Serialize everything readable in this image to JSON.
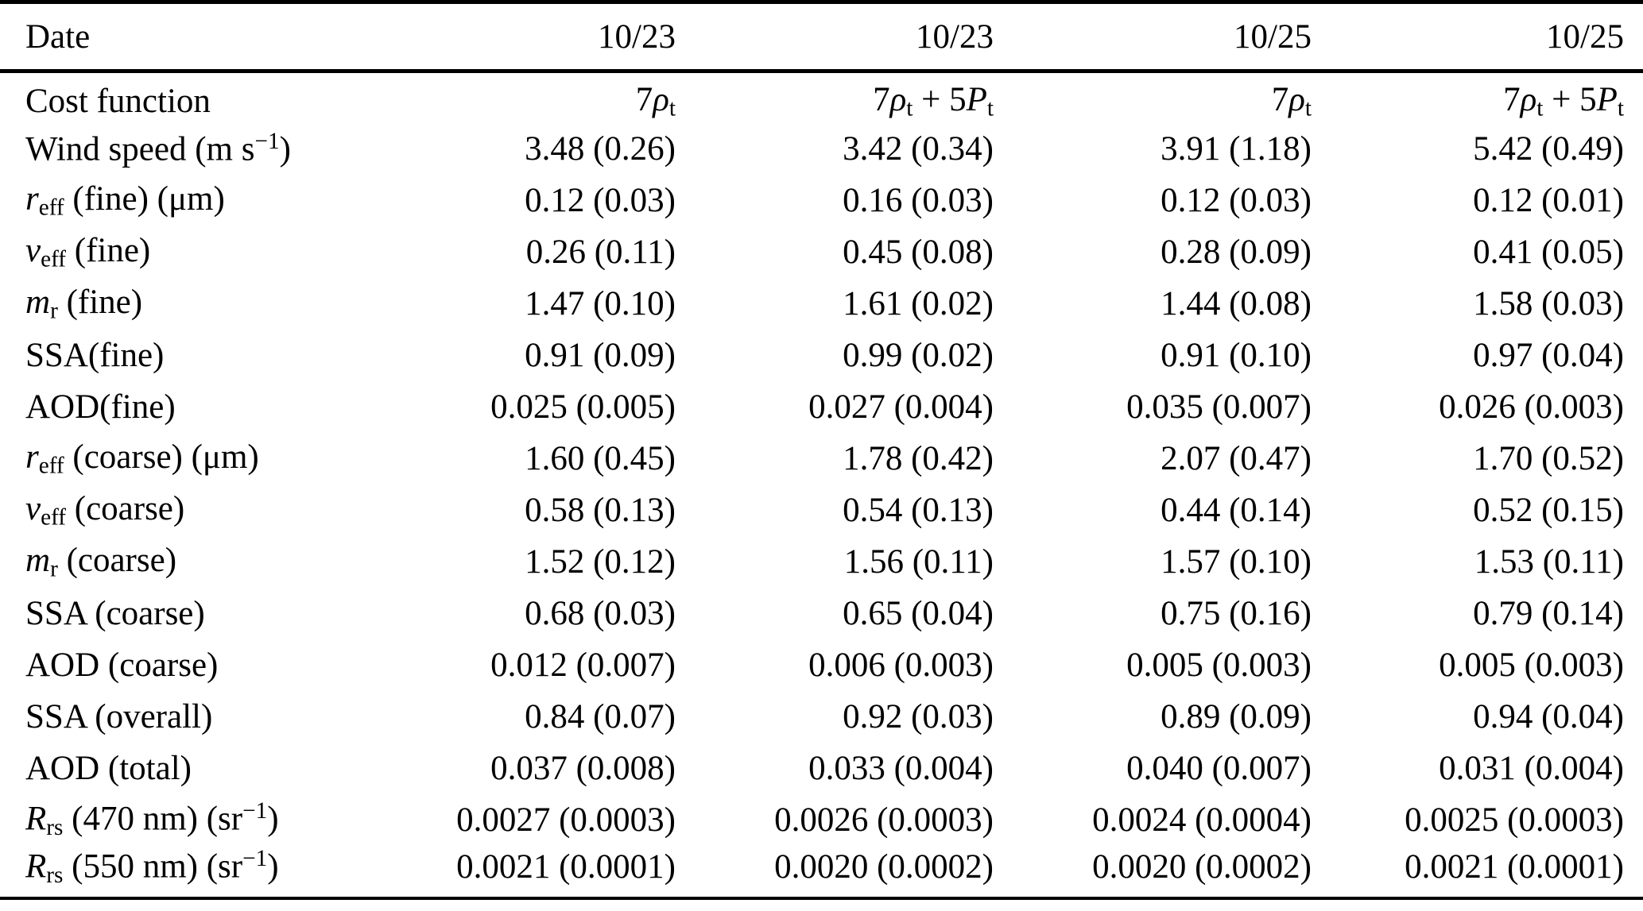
{
  "page": {
    "background_color": "#ffffff",
    "text_color": "#000000",
    "rule_color": "#000000"
  },
  "table": {
    "header": {
      "row_label": "Date",
      "columns": [
        "10/23",
        "10/23",
        "10/25",
        "10/25"
      ]
    },
    "rows": [
      {
        "id": "cost-function",
        "label": [
          {
            "t": "Cost function"
          }
        ],
        "values": [
          [
            {
              "t": "7"
            },
            {
              "t": "ρ",
              "s": "i"
            },
            {
              "t": "t",
              "s": "sub"
            }
          ],
          [
            {
              "t": "7"
            },
            {
              "t": "ρ",
              "s": "i"
            },
            {
              "t": "t",
              "s": "sub"
            },
            {
              "t": " + 5"
            },
            {
              "t": "P",
              "s": "i"
            },
            {
              "t": "t",
              "s": "sub"
            }
          ],
          [
            {
              "t": "7"
            },
            {
              "t": "ρ",
              "s": "i"
            },
            {
              "t": "t",
              "s": "sub"
            }
          ],
          [
            {
              "t": "7"
            },
            {
              "t": "ρ",
              "s": "i"
            },
            {
              "t": "t",
              "s": "sub"
            },
            {
              "t": " + 5"
            },
            {
              "t": "P",
              "s": "i"
            },
            {
              "t": "t",
              "s": "sub"
            }
          ]
        ]
      },
      {
        "id": "wind-speed",
        "label": [
          {
            "t": "Wind speed (m s"
          },
          {
            "t": "−1",
            "s": "sup"
          },
          {
            "t": ")"
          }
        ],
        "values": [
          "3.48 (0.26)",
          "3.42 (0.34)",
          "3.91 (1.18)",
          "5.42 (0.49)"
        ]
      },
      {
        "id": "reff-fine",
        "label": [
          {
            "t": "r",
            "s": "i"
          },
          {
            "t": "eff",
            "s": "sub"
          },
          {
            "t": " (fine) (μm)"
          }
        ],
        "values": [
          "0.12 (0.03)",
          "0.16 (0.03)",
          "0.12 (0.03)",
          "0.12 (0.01)"
        ]
      },
      {
        "id": "veff-fine",
        "label": [
          {
            "t": "v",
            "s": "i"
          },
          {
            "t": "eff",
            "s": "sub"
          },
          {
            "t": " (fine)"
          }
        ],
        "values": [
          "0.26 (0.11)",
          "0.45 (0.08)",
          "0.28 (0.09)",
          "0.41 (0.05)"
        ]
      },
      {
        "id": "mr-fine",
        "label": [
          {
            "t": "m",
            "s": "i"
          },
          {
            "t": "r",
            "s": "sub"
          },
          {
            "t": " (fine)"
          }
        ],
        "values": [
          "1.47 (0.10)",
          "1.61 (0.02)",
          "1.44 (0.08)",
          "1.58 (0.03)"
        ]
      },
      {
        "id": "ssa-fine",
        "label": [
          {
            "t": "SSA(fine)"
          }
        ],
        "values": [
          "0.91 (0.09)",
          "0.99 (0.02)",
          "0.91 (0.10)",
          "0.97 (0.04)"
        ]
      },
      {
        "id": "aod-fine",
        "label": [
          {
            "t": "AOD(fine)"
          }
        ],
        "values": [
          "0.025 (0.005)",
          "0.027 (0.004)",
          "0.035 (0.007)",
          "0.026 (0.003)"
        ]
      },
      {
        "id": "reff-coarse",
        "label": [
          {
            "t": "r",
            "s": "i"
          },
          {
            "t": "eff",
            "s": "sub"
          },
          {
            "t": " (coarse) (μm)"
          }
        ],
        "values": [
          "1.60 (0.45)",
          "1.78 (0.42)",
          "2.07 (0.47)",
          "1.70 (0.52)"
        ]
      },
      {
        "id": "veff-coarse",
        "label": [
          {
            "t": "v",
            "s": "i"
          },
          {
            "t": "eff",
            "s": "sub"
          },
          {
            "t": " (coarse)"
          }
        ],
        "values": [
          "0.58 (0.13)",
          "0.54 (0.13)",
          "0.44 (0.14)",
          "0.52 (0.15)"
        ]
      },
      {
        "id": "mr-coarse",
        "label": [
          {
            "t": "m",
            "s": "i"
          },
          {
            "t": "r",
            "s": "sub"
          },
          {
            "t": " (coarse)"
          }
        ],
        "values": [
          "1.52 (0.12)",
          "1.56 (0.11)",
          "1.57 (0.10)",
          "1.53 (0.11)"
        ]
      },
      {
        "id": "ssa-coarse",
        "label": [
          {
            "t": "SSA (coarse)"
          }
        ],
        "values": [
          "0.68 (0.03)",
          "0.65 (0.04)",
          "0.75 (0.16)",
          "0.79 (0.14)"
        ]
      },
      {
        "id": "aod-coarse",
        "label": [
          {
            "t": "AOD (coarse)"
          }
        ],
        "values": [
          "0.012 (0.007)",
          "0.006 (0.003)",
          "0.005 (0.003)",
          "0.005 (0.003)"
        ]
      },
      {
        "id": "ssa-overall",
        "label": [
          {
            "t": "SSA (overall)"
          }
        ],
        "values": [
          "0.84 (0.07)",
          "0.92 (0.03)",
          "0.89 (0.09)",
          "0.94 (0.04)"
        ]
      },
      {
        "id": "aod-total",
        "label": [
          {
            "t": "AOD (total)"
          }
        ],
        "values": [
          "0.037 (0.008)",
          "0.033 (0.004)",
          "0.040 (0.007)",
          "0.031 (0.004)"
        ]
      },
      {
        "id": "rrs-470",
        "label": [
          {
            "t": "R",
            "s": "i"
          },
          {
            "t": "rs",
            "s": "sub"
          },
          {
            "t": " (470 nm) (sr"
          },
          {
            "t": "−1",
            "s": "sup"
          },
          {
            "t": ")"
          }
        ],
        "values": [
          "0.0027 (0.0003)",
          "0.0026 (0.0003)",
          "0.0024 (0.0004)",
          "0.0025 (0.0003)"
        ]
      },
      {
        "id": "rrs-550",
        "label": [
          {
            "t": "R",
            "s": "i"
          },
          {
            "t": "rs",
            "s": "sub"
          },
          {
            "t": " (550 nm) (sr"
          },
          {
            "t": "−1",
            "s": "sup"
          },
          {
            "t": ")"
          }
        ],
        "values": [
          "0.0021 (0.0001)",
          "0.0020 (0.0002)",
          "0.0020 (0.0002)",
          "0.0021 (0.0001)"
        ]
      }
    ]
  }
}
